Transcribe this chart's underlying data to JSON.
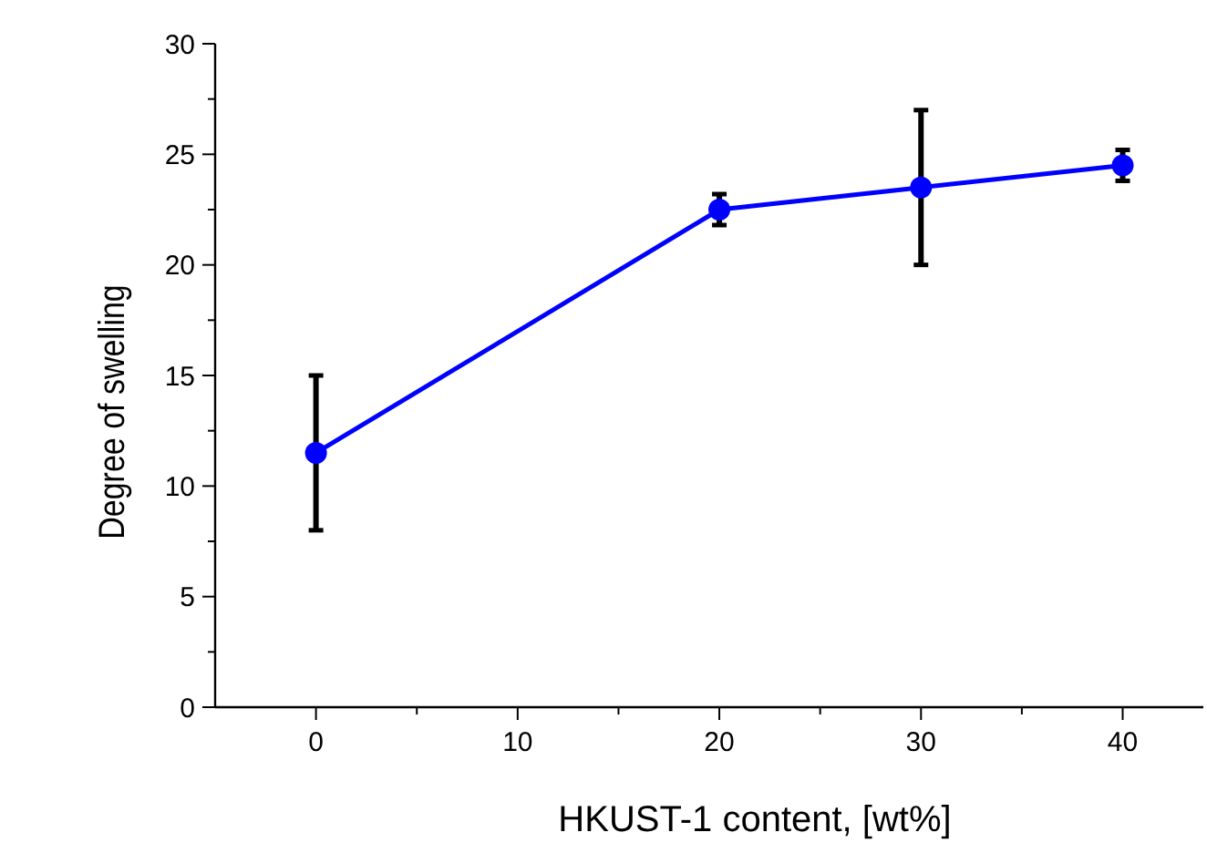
{
  "chart_data": {
    "type": "line",
    "xlabel": "HKUST-1 content, [wt%]",
    "ylabel": "Degree of swelling",
    "x": [
      0,
      20,
      30,
      40
    ],
    "series": [
      {
        "color": "#0000ff",
        "values": [
          11.5,
          22.5,
          23.5,
          24.5
        ],
        "errors": [
          [
            8,
            15
          ],
          [
            21.8,
            23.2
          ],
          [
            20,
            27
          ],
          [
            23.8,
            25.2
          ]
        ]
      }
    ],
    "xlim": [
      -5,
      44
    ],
    "ylim": [
      0,
      30
    ],
    "xticks": [
      0,
      {
        "value": 5,
        "label": null
      },
      10,
      {
        "value": 15,
        "label": null
      },
      20,
      {
        "value": 25,
        "label": null
      },
      30,
      {
        "value": 35,
        "label": null
      },
      40
    ],
    "yticks": [
      0,
      {
        "value": 2.5,
        "label": null
      },
      5,
      {
        "value": 7.5,
        "label": null
      },
      10,
      {
        "value": 12.5,
        "label": null
      },
      15,
      {
        "value": 17.5,
        "label": null
      },
      20,
      {
        "value": 22.5,
        "label": null
      },
      25,
      {
        "value": 27.5,
        "label": null
      },
      30
    ],
    "marker": "circle",
    "line_style": "solid",
    "grid": false
  }
}
